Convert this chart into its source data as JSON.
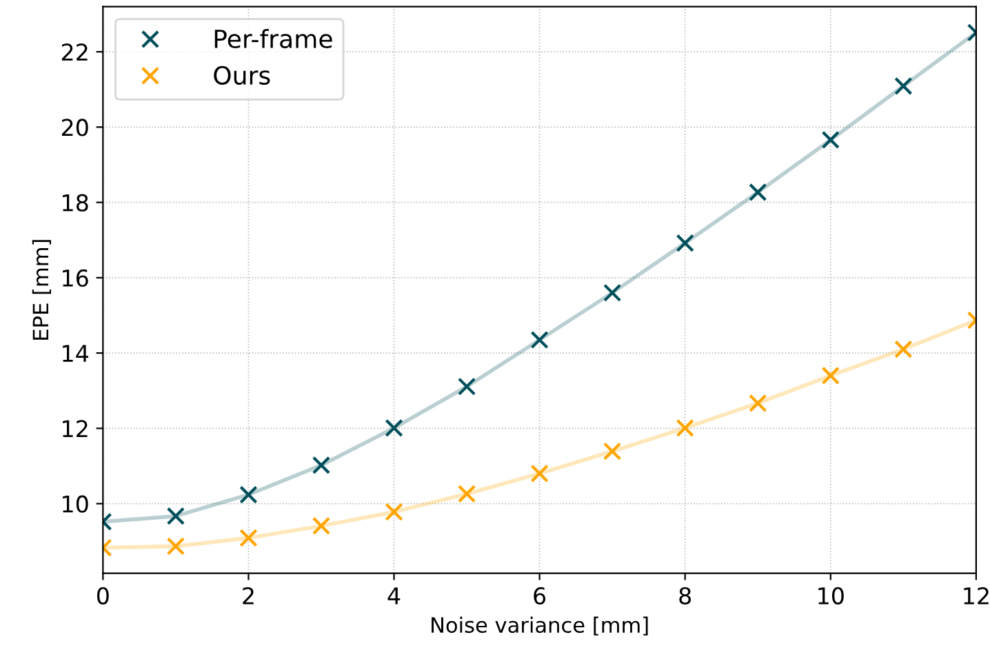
{
  "chart_data": {
    "type": "line",
    "xlabel": "Noise variance [mm]",
    "ylabel": "EPE [mm]",
    "x": [
      0,
      1,
      2,
      3,
      4,
      5,
      6,
      7,
      8,
      9,
      10,
      11,
      12
    ],
    "series": [
      {
        "name": "Per-frame",
        "color": "#004f5a",
        "values": [
          9.52,
          9.67,
          10.24,
          11.02,
          12.01,
          13.11,
          14.35,
          15.6,
          16.92,
          18.27,
          19.66,
          21.09,
          22.51
        ]
      },
      {
        "name": "Ours",
        "color": "#ffa500",
        "values": [
          8.83,
          8.87,
          9.09,
          9.41,
          9.78,
          10.26,
          10.8,
          11.39,
          12.01,
          12.67,
          13.4,
          14.1,
          14.87
        ]
      }
    ],
    "xlim": [
      0,
      12
    ],
    "xticks": [
      0,
      2,
      4,
      6,
      8,
      10,
      12
    ],
    "ylim": [
      8.15,
      23.2
    ],
    "yticks": [
      10,
      12,
      14,
      16,
      18,
      20,
      22
    ],
    "grid": true,
    "legend": "top left",
    "marker": "cross",
    "line_style": "solid"
  }
}
